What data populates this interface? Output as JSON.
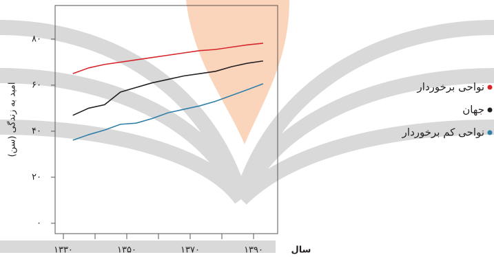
{
  "chart_data": {
    "type": "line",
    "xlabel": "سال",
    "ylabel": "امید به زندگی (سن)",
    "x": [
      1333,
      1338,
      1343,
      1348,
      1353,
      1358,
      1363,
      1368,
      1373,
      1378,
      1383,
      1388,
      1393
    ],
    "series": [
      {
        "name": "نواحی برخوردار",
        "color": "#d7262b",
        "values": [
          65,
          67.5,
          69,
          70,
          71,
          72,
          73,
          74,
          75,
          75.5,
          76.5,
          77.5,
          78.2
        ]
      },
      {
        "name": "جهان",
        "color": "#231f20",
        "values": [
          46.9,
          50,
          51.5,
          57,
          59,
          61,
          62.5,
          64,
          65,
          66,
          68,
          69.5,
          70.5
        ]
      },
      {
        "name": "نواحی کم برخوردار",
        "color": "#2f7fa8",
        "values": [
          36.1,
          38.5,
          40.5,
          43,
          43.5,
          45.5,
          48,
          49.5,
          51,
          53,
          55.5,
          58,
          60.6
        ]
      }
    ],
    "xlim": [
      1327.4,
      1397.6
    ],
    "ylim": [
      -4.5,
      94.6
    ],
    "xticks": [
      {
        "value": 1330,
        "label": "۱۳۳۰"
      },
      {
        "value": 1350,
        "label": "۱۳۵۰"
      },
      {
        "value": 1370,
        "label": "۱۳۷۰"
      },
      {
        "value": 1390,
        "label": "۱۳۹۰"
      }
    ],
    "xminorticks": [
      1340,
      1360,
      1380
    ],
    "yticks": [
      {
        "value": 0,
        "label": "۰"
      },
      {
        "value": 20,
        "label": "۲۰"
      },
      {
        "value": 40,
        "label": "۴۰"
      },
      {
        "value": 60,
        "label": "۶۰"
      },
      {
        "value": 80,
        "label": "۸۰"
      }
    ],
    "legend": "right"
  }
}
